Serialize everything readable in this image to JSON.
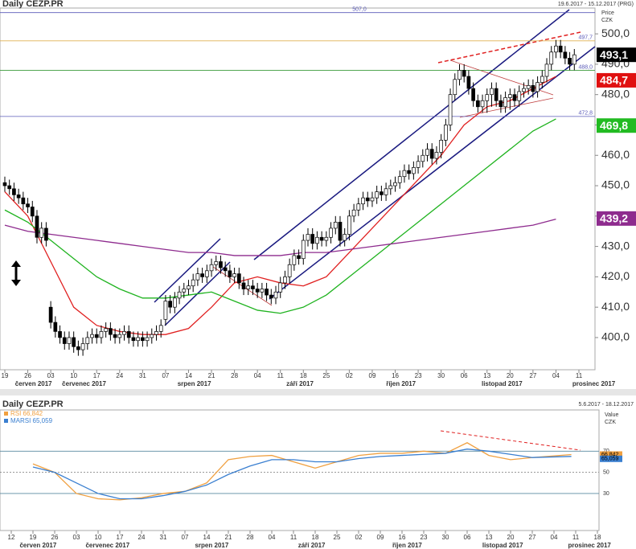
{
  "chart_data": [
    {
      "type": "candlestick",
      "title": "Daily CEZP.PR",
      "subtitle": "19.6.2017 - 15.12.2017 (PRG)",
      "axis_label": "Price",
      "axis_unit": "CZK",
      "open": [
        451,
        450,
        449,
        447,
        446,
        444,
        443,
        440,
        433,
        436,
        410,
        405,
        402,
        400,
        398,
        400,
        397,
        396,
        398,
        400,
        401,
        400,
        402,
        403,
        401,
        400,
        401,
        402,
        400,
        399,
        400,
        399,
        400,
        401,
        402,
        406,
        412,
        410,
        413,
        415,
        416,
        417,
        419,
        421,
        420,
        422,
        424,
        425,
        423,
        422,
        420,
        421,
        418,
        416,
        417,
        416,
        415,
        416,
        414,
        413,
        415,
        418,
        420,
        424,
        427,
        426,
        432,
        434,
        431,
        433,
        432,
        433,
        436,
        438,
        432,
        434,
        440,
        442,
        444,
        446,
        445,
        446,
        448,
        447,
        449,
        450,
        451,
        453,
        455,
        454,
        456,
        458,
        460,
        462,
        459,
        461,
        465,
        470,
        480,
        485,
        488,
        486,
        482,
        478,
        476,
        478,
        480,
        482,
        478,
        476,
        479,
        480,
        478,
        481,
        482,
        483,
        481,
        484,
        486,
        490,
        494,
        496,
        494,
        492,
        490
      ],
      "high": [
        453,
        452,
        451,
        449,
        448,
        446,
        445,
        442,
        438,
        438,
        412,
        407,
        404,
        402,
        402,
        402,
        399,
        400,
        402,
        403,
        403,
        404,
        405,
        405,
        403,
        403,
        404,
        404,
        402,
        402,
        402,
        402,
        403,
        404,
        406,
        414,
        414,
        415,
        417,
        418,
        419,
        421,
        423,
        423,
        424,
        426,
        427,
        427,
        425,
        424,
        423,
        423,
        420,
        419,
        419,
        418,
        418,
        418,
        416,
        417,
        420,
        422,
        426,
        429,
        429,
        434,
        436,
        436,
        435,
        435,
        435,
        438,
        440,
        440,
        436,
        442,
        444,
        446,
        448,
        448,
        448,
        450,
        450,
        451,
        452,
        453,
        455,
        457,
        457,
        458,
        460,
        462,
        464,
        464,
        463,
        467,
        472,
        482,
        487,
        490,
        490,
        488,
        484,
        480,
        480,
        482,
        484,
        484,
        480,
        481,
        482,
        482,
        483,
        484,
        485,
        485,
        486,
        488,
        492,
        496,
        498,
        498,
        496,
        494,
        495
      ],
      "low": [
        448,
        447,
        445,
        444,
        442,
        441,
        438,
        431,
        431,
        430,
        403,
        400,
        398,
        396,
        396,
        395,
        394,
        394,
        396,
        398,
        398,
        398,
        400,
        399,
        398,
        398,
        399,
        398,
        397,
        397,
        397,
        397,
        398,
        399,
        400,
        404,
        408,
        408,
        411,
        413,
        414,
        415,
        417,
        418,
        418,
        420,
        422,
        421,
        420,
        418,
        418,
        416,
        414,
        414,
        414,
        413,
        413,
        412,
        411,
        411,
        413,
        416,
        418,
        422,
        424,
        424,
        430,
        429,
        429,
        430,
        430,
        431,
        434,
        430,
        430,
        432,
        438,
        440,
        442,
        443,
        443,
        444,
        445,
        445,
        447,
        448,
        449,
        451,
        452,
        452,
        454,
        456,
        458,
        457,
        457,
        459,
        463,
        468,
        478,
        483,
        484,
        480,
        476,
        474,
        474,
        474,
        476,
        476,
        474,
        474,
        475,
        476,
        476,
        479,
        480,
        479,
        479,
        482,
        484,
        488,
        492,
        492,
        490,
        488,
        488
      ],
      "close": [
        450,
        449,
        447,
        446,
        444,
        443,
        440,
        433,
        436,
        432,
        405,
        402,
        400,
        398,
        400,
        397,
        396,
        398,
        400,
        401,
        400,
        402,
        403,
        401,
        400,
        401,
        402,
        400,
        399,
        400,
        399,
        400,
        401,
        402,
        404,
        412,
        410,
        413,
        415,
        416,
        417,
        419,
        421,
        420,
        422,
        424,
        425,
        423,
        422,
        420,
        421,
        418,
        416,
        417,
        416,
        415,
        416,
        414,
        413,
        415,
        418,
        420,
        424,
        427,
        426,
        432,
        434,
        431,
        433,
        432,
        433,
        436,
        438,
        432,
        434,
        440,
        442,
        444,
        446,
        445,
        446,
        448,
        447,
        449,
        450,
        451,
        453,
        455,
        454,
        456,
        458,
        460,
        462,
        459,
        461,
        465,
        470,
        480,
        485,
        488,
        486,
        482,
        478,
        476,
        478,
        480,
        482,
        478,
        476,
        479,
        480,
        478,
        481,
        482,
        483,
        481,
        484,
        486,
        490,
        494,
        496,
        494,
        492,
        490,
        493.1
      ],
      "series": [
        {
          "name": "MA fast",
          "color": "#e02020",
          "x": [
            0,
            5,
            10,
            15,
            20,
            25,
            30,
            35,
            40,
            45,
            50,
            55,
            60,
            65,
            70,
            75,
            80,
            85,
            90,
            95,
            100,
            105,
            110,
            115,
            120
          ],
          "values": [
            448,
            440,
            425,
            410,
            404,
            402,
            401,
            401,
            403,
            410,
            418,
            420,
            418,
            417,
            420,
            428,
            436,
            444,
            452,
            460,
            470,
            476,
            478,
            482,
            486
          ]
        },
        {
          "name": "MA mid",
          "color": "#1fb31f",
          "x": [
            0,
            5,
            10,
            15,
            20,
            25,
            30,
            35,
            40,
            45,
            50,
            55,
            60,
            65,
            70,
            75,
            80,
            85,
            90,
            95,
            100,
            105,
            110,
            115,
            120
          ],
          "values": [
            442,
            438,
            432,
            426,
            420,
            416,
            413,
            413,
            414,
            415,
            412,
            409,
            408,
            410,
            414,
            420,
            426,
            432,
            438,
            444,
            450,
            456,
            462,
            468,
            472
          ]
        },
        {
          "name": "MA slow",
          "color": "#8e2b8e",
          "x": [
            0,
            5,
            10,
            15,
            20,
            25,
            30,
            35,
            40,
            45,
            50,
            55,
            60,
            65,
            70,
            75,
            80,
            85,
            90,
            95,
            100,
            105,
            110,
            115,
            120
          ],
          "values": [
            437,
            435,
            434,
            433,
            432,
            431,
            430,
            429,
            428,
            428,
            427,
            427,
            427,
            428,
            428,
            429,
            430,
            431,
            432,
            433,
            434,
            435,
            436,
            437,
            439
          ]
        }
      ],
      "ylim": [
        389.4,
        508.5
      ],
      "yticks": [
        {
          "value": 400,
          "label": "400,0"
        },
        {
          "value": 410,
          "label": "410,0"
        },
        {
          "value": 420,
          "label": "420,0"
        },
        {
          "value": 430,
          "label": "430,0"
        },
        {
          "value": 440,
          "label": "440,0"
        },
        {
          "value": 450,
          "label": "450,0"
        },
        {
          "value": 460,
          "label": "460,0"
        },
        {
          "value": 470,
          "label": "470,0"
        },
        {
          "value": 480,
          "label": "480,0"
        },
        {
          "value": 490,
          "label": "490,0"
        },
        {
          "value": 500,
          "label": "500,0"
        }
      ],
      "levels": [
        {
          "value": 507,
          "label": "507,0",
          "color": "#5a5ab8"
        },
        {
          "value": 497.7,
          "label": "497,7",
          "color": "#e0b050"
        },
        {
          "value": 488,
          "label": "488,0",
          "color": "#3a9a3a"
        },
        {
          "value": 472.8,
          "label": "472,8",
          "color": "#5a5ab8"
        }
      ],
      "last_values": [
        {
          "value": 493.1,
          "label": "493,1",
          "color": "#000000"
        },
        {
          "value": 484.7,
          "label": "484,7",
          "color": "#e01010"
        },
        {
          "value": 469.8,
          "label": "469,8",
          "color": "#22bb22"
        },
        {
          "value": 439.2,
          "label": "439,2",
          "color": "#8e2b8e"
        }
      ],
      "xticks": [
        {
          "value": 0,
          "label": "19"
        },
        {
          "value": 5,
          "label": "26"
        },
        {
          "value": 10,
          "label": "03"
        },
        {
          "value": 15,
          "label": "10"
        },
        {
          "value": 20,
          "label": "17"
        },
        {
          "value": 25,
          "label": "24"
        },
        {
          "value": 30,
          "label": "31"
        },
        {
          "value": 35,
          "label": "07"
        },
        {
          "value": 40,
          "label": "14"
        },
        {
          "value": 45,
          "label": "21"
        },
        {
          "value": 50,
          "label": "28"
        },
        {
          "value": 55,
          "label": "04"
        },
        {
          "value": 60,
          "label": "11"
        },
        {
          "value": 65,
          "label": "18"
        },
        {
          "value": 70,
          "label": "25"
        },
        {
          "value": 75,
          "label": "02"
        },
        {
          "value": 80,
          "label": "09"
        },
        {
          "value": 85,
          "label": "16"
        },
        {
          "value": 90,
          "label": "23"
        },
        {
          "value": 95,
          "label": "30"
        },
        {
          "value": 100,
          "label": "06"
        },
        {
          "value": 105,
          "label": "13"
        },
        {
          "value": 110,
          "label": "20"
        },
        {
          "value": 115,
          "label": "27"
        },
        {
          "value": 120,
          "label": "04"
        },
        {
          "value": 125,
          "label": "11"
        }
      ],
      "months": [
        {
          "value": 1,
          "label": "červen 2017"
        },
        {
          "value": 12,
          "label": "červenec 2017"
        },
        {
          "value": 36,
          "label": "srpen 2017"
        },
        {
          "value": 59,
          "label": "září 2017"
        },
        {
          "value": 81,
          "label": "říjen 2017"
        },
        {
          "value": 103,
          "label": "listopad 2017"
        },
        {
          "value": 123,
          "label": "prosinec 2017"
        }
      ]
    },
    {
      "type": "line",
      "title": "Daily CEZP.PR",
      "subtitle": "5.6.2017 - 18.12.2017",
      "axis_label": "Value",
      "axis_unit": "CZK",
      "series": [
        {
          "name": "RSI 66,842",
          "last_label": "66,842",
          "color": "#f0a040",
          "x": [
            0,
            5,
            10,
            15,
            20,
            25,
            30,
            35,
            40,
            45,
            50,
            55,
            60,
            65,
            70,
            75,
            80,
            85,
            90,
            95,
            100,
            105,
            110,
            115,
            124
          ],
          "values": [
            58,
            50,
            30,
            25,
            24,
            26,
            30,
            32,
            40,
            62,
            65,
            66,
            60,
            54,
            60,
            66,
            68,
            68,
            70,
            68,
            78,
            66,
            62,
            64,
            66.842
          ]
        },
        {
          "name": "MARSI 65,059",
          "last_label": "65,059",
          "color": "#3a7fd0",
          "x": [
            0,
            5,
            10,
            15,
            20,
            25,
            30,
            35,
            40,
            45,
            50,
            55,
            60,
            65,
            70,
            75,
            80,
            85,
            90,
            95,
            100,
            105,
            110,
            115,
            124
          ],
          "values": [
            55,
            50,
            40,
            30,
            25,
            25,
            28,
            32,
            38,
            48,
            56,
            62,
            62,
            60,
            60,
            63,
            65,
            66,
            67,
            68,
            72,
            70,
            67,
            64,
            65.059
          ]
        }
      ],
      "ylim": [
        -5,
        109
      ],
      "yticks": [
        30,
        50,
        70
      ],
      "xticks": [
        {
          "value": -5,
          "label": "12"
        },
        {
          "value": 0,
          "label": "19"
        },
        {
          "value": 5,
          "label": "26"
        },
        {
          "value": 10,
          "label": "03"
        },
        {
          "value": 15,
          "label": "10"
        },
        {
          "value": 20,
          "label": "17"
        },
        {
          "value": 25,
          "label": "24"
        },
        {
          "value": 30,
          "label": "31"
        },
        {
          "value": 35,
          "label": "07"
        },
        {
          "value": 40,
          "label": "14"
        },
        {
          "value": 45,
          "label": "21"
        },
        {
          "value": 50,
          "label": "28"
        },
        {
          "value": 55,
          "label": "04"
        },
        {
          "value": 60,
          "label": "11"
        },
        {
          "value": 65,
          "label": "18"
        },
        {
          "value": 70,
          "label": "25"
        },
        {
          "value": 75,
          "label": "02"
        },
        {
          "value": 80,
          "label": "09"
        },
        {
          "value": 85,
          "label": "16"
        },
        {
          "value": 90,
          "label": "23"
        },
        {
          "value": 95,
          "label": "30"
        },
        {
          "value": 100,
          "label": "06"
        },
        {
          "value": 105,
          "label": "13"
        },
        {
          "value": 110,
          "label": "20"
        },
        {
          "value": 115,
          "label": "27"
        },
        {
          "value": 120,
          "label": "04"
        },
        {
          "value": 125,
          "label": "11"
        },
        {
          "value": 130,
          "label": "18"
        }
      ],
      "months": [
        {
          "value": -4,
          "label": "červen 2017"
        },
        {
          "value": 12,
          "label": "červenec 2017"
        },
        {
          "value": 36,
          "label": "srpen 2017"
        },
        {
          "value": 59,
          "label": "září 2017"
        },
        {
          "value": 81,
          "label": "říjen 2017"
        },
        {
          "value": 103,
          "label": "listopad 2017"
        },
        {
          "value": 123,
          "label": "prosinec 2017"
        }
      ]
    }
  ]
}
